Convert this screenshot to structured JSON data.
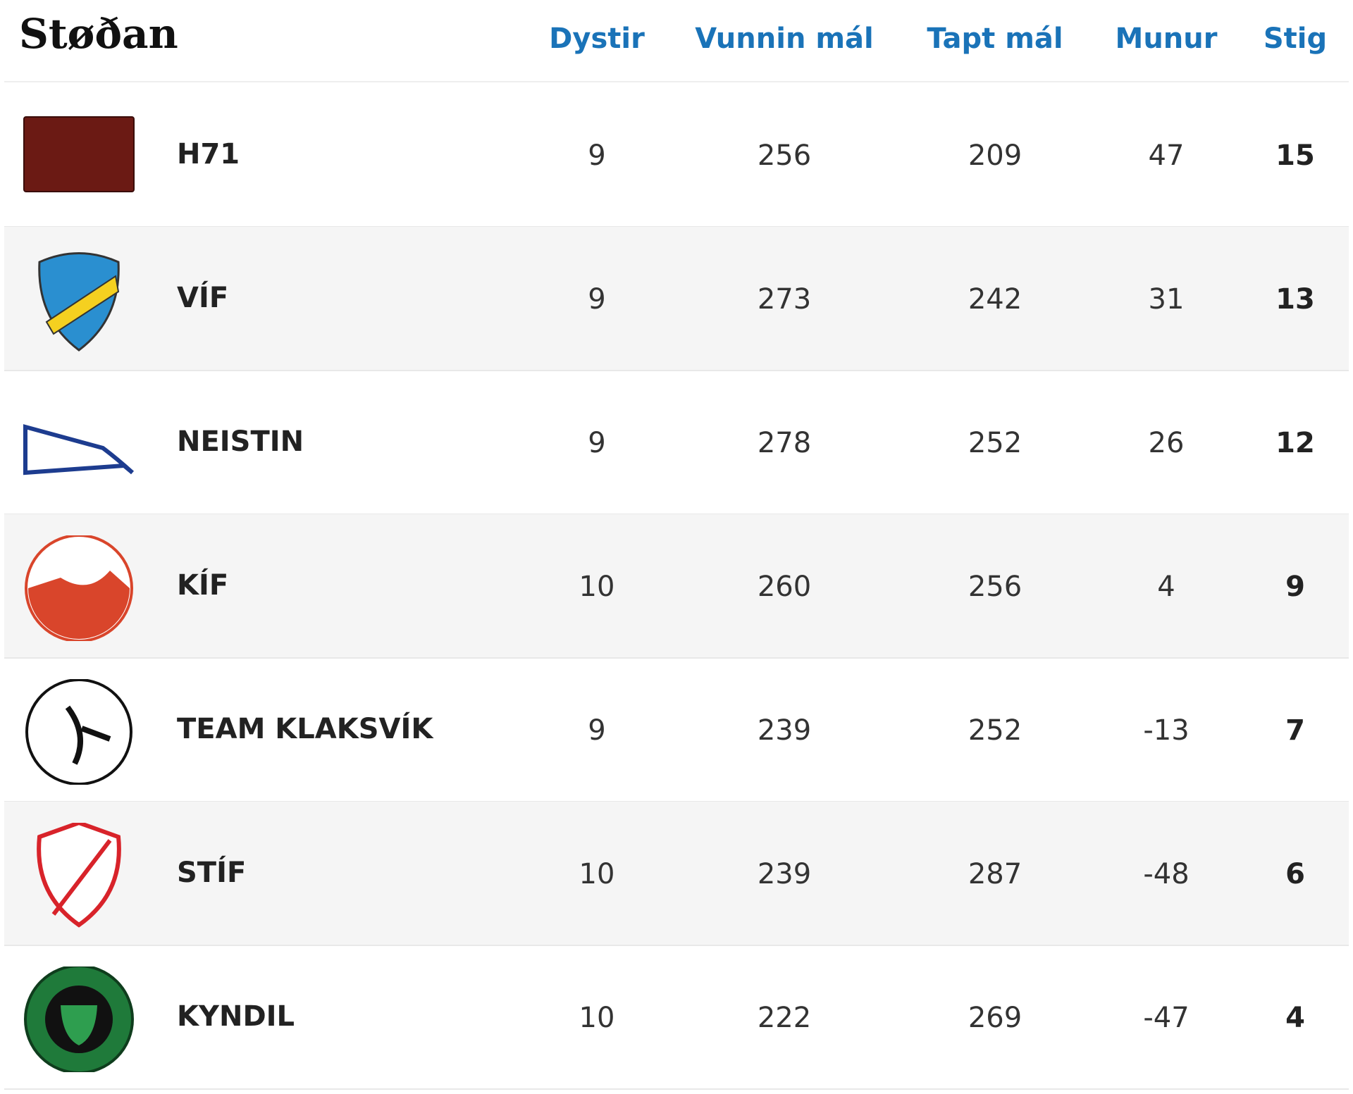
{
  "header": {
    "title": "Støðan",
    "columns": [
      "Dystir",
      "Vunnin mál",
      "Tapt mál",
      "Munur",
      "Stig"
    ]
  },
  "table": {
    "rows": [
      [
        "H71",
        9,
        256,
        209,
        47,
        15
      ],
      [
        "VÍF",
        9,
        273,
        242,
        31,
        13
      ],
      [
        "NEISTIN",
        9,
        278,
        252,
        26,
        12
      ],
      [
        "KÍF",
        10,
        260,
        256,
        4,
        9
      ],
      [
        "TEAM KLAKSVÍK",
        9,
        239,
        252,
        -13,
        7
      ],
      [
        "STÍF",
        10,
        239,
        287,
        -48,
        6
      ],
      [
        "KYNDIL",
        10,
        222,
        269,
        -47,
        4
      ]
    ]
  }
}
